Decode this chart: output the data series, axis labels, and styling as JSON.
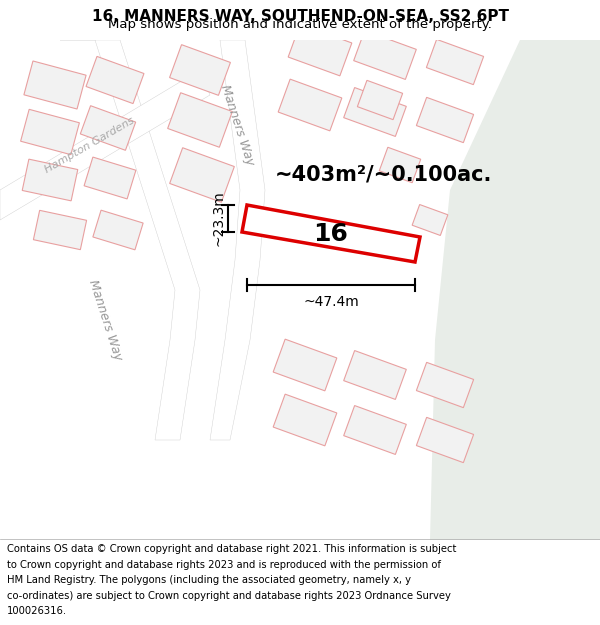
{
  "title_line1": "16, MANNERS WAY, SOUTHEND-ON-SEA, SS2 6PT",
  "title_line2": "Map shows position and indicative extent of the property.",
  "footer_text": "Contains OS data © Crown copyright and database right 2021. This information is subject to Crown copyright and database rights 2023 and is reproduced with the permission of HM Land Registry. The polygons (including the associated geometry, namely x, y co-ordinates) are subject to Crown copyright and database rights 2023 Ordnance Survey 100026316.",
  "area_label": "~403m²/~0.100ac.",
  "property_number": "16",
  "dim_width": "~47.4m",
  "dim_height": "~23.3m",
  "map_bg": "#f2f2f2",
  "plot_outline": "#e8a0a0",
  "road_fill": "#ffffff",
  "property_outline": "#dd0000",
  "property_fill": "#ffffff",
  "green_fill": "#e8ede8",
  "title_fontsize": 11,
  "subtitle_fontsize": 9.5,
  "footer_fontsize": 7.2,
  "area_fontsize": 15,
  "number_fontsize": 18,
  "dim_fontsize": 10
}
